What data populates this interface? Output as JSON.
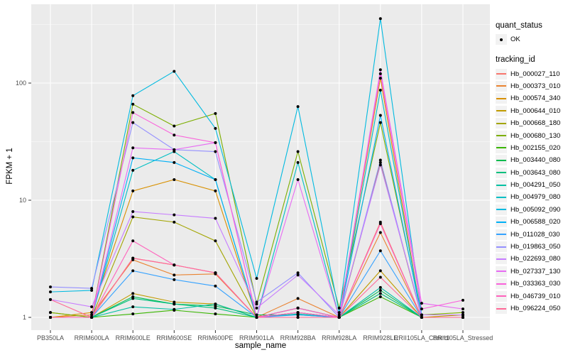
{
  "chart_data": {
    "type": "line",
    "title": "",
    "xlabel": "sample_name",
    "ylabel": "FPKM + 1",
    "y_scale": "log10",
    "ylim": [
      0.78,
      470
    ],
    "y_ticks": [
      1,
      10,
      100
    ],
    "y_minor_ticks": [
      3.162,
      31.62,
      316.2
    ],
    "grid": "major-white-on-gray-panel",
    "panel_color": "#EBEBEB",
    "gridline_color": "#FFFFFF",
    "axis_text_color": "#4D4D4D",
    "point_color": "#000000",
    "legend_position": "right",
    "categories": [
      "PB350LA",
      "RRIM600LA",
      "RRIM600LE",
      "RRIM600SE",
      "RRIM600PE",
      "RRIM901LA",
      "RRIM928BA",
      "RRIM928LA",
      "RRIM928LE",
      "RRII105LA_Control",
      "RRII105LA_Stressed"
    ],
    "quant_status": {
      "title": "quant_status",
      "items": [
        "OK"
      ]
    },
    "legend_title": "tracking_id",
    "series": [
      {
        "name": "Hb_000027_110",
        "color": "#F8766D",
        "values": [
          1.0,
          1.0,
          3.2,
          2.8,
          2.4,
          1.0,
          1.2,
          1.0,
          6.5,
          1.0,
          1.0
        ]
      },
      {
        "name": "Hb_000373_010",
        "color": "#EA8331",
        "values": [
          1.0,
          1.05,
          3.1,
          2.3,
          2.35,
          1.0,
          1.45,
          1.0,
          5.3,
          1.0,
          1.0
        ]
      },
      {
        "name": "Hb_000574_340",
        "color": "#D89000",
        "values": [
          1.0,
          1.1,
          12,
          15,
          12,
          1.0,
          1.2,
          1.0,
          110,
          1.0,
          1.0
        ]
      },
      {
        "name": "Hb_000644_010",
        "color": "#C09B00",
        "values": [
          1.0,
          1.0,
          1.6,
          1.35,
          1.3,
          1.0,
          1.1,
          1.0,
          2.5,
          1.0,
          1.05
        ]
      },
      {
        "name": "Hb_000668_180",
        "color": "#A3A500",
        "values": [
          1.1,
          1.0,
          7.2,
          6.5,
          4.5,
          1.0,
          1.1,
          1.0,
          21,
          1.0,
          1.0
        ]
      },
      {
        "name": "Hb_000680_130",
        "color": "#7CAE00",
        "values": [
          1.1,
          1.0,
          66,
          43,
          55,
          1.3,
          26,
          1.2,
          46,
          1.05,
          1.1
        ]
      },
      {
        "name": "Hb_002155_020",
        "color": "#39B600",
        "values": [
          1.0,
          1.0,
          1.07,
          1.15,
          1.07,
          1.0,
          1.0,
          1.0,
          1.5,
          1.0,
          1.0
        ]
      },
      {
        "name": "Hb_003440_080",
        "color": "#00BB4E",
        "values": [
          1.0,
          1.0,
          1.5,
          1.3,
          1.25,
          1.05,
          1.05,
          1.0,
          1.7,
          1.0,
          1.0
        ]
      },
      {
        "name": "Hb_003643_080",
        "color": "#00BF7D",
        "values": [
          1.0,
          1.0,
          1.45,
          1.3,
          1.2,
          1.0,
          1.0,
          1.0,
          1.6,
          1.0,
          1.0
        ]
      },
      {
        "name": "Hb_004291_050",
        "color": "#00C1A3",
        "values": [
          1.0,
          1.0,
          1.23,
          1.17,
          1.3,
          1.0,
          1.07,
          1.0,
          1.8,
          1.0,
          1.0
        ]
      },
      {
        "name": "Hb_004979_080",
        "color": "#00BFC4",
        "values": [
          1.0,
          1.0,
          18,
          26,
          15,
          1.0,
          21,
          1.0,
          87,
          1.0,
          1.0
        ]
      },
      {
        "name": "Hb_005092_090",
        "color": "#00BAE0",
        "values": [
          1.65,
          1.7,
          78,
          126,
          41,
          2.15,
          63,
          1.1,
          355,
          1.05,
          1.05
        ]
      },
      {
        "name": "Hb_006588_020",
        "color": "#00B0F6",
        "values": [
          1.0,
          1.0,
          23,
          21,
          15,
          1.0,
          1.2,
          1.0,
          53,
          1.0,
          1.0
        ]
      },
      {
        "name": "Hb_011028_030",
        "color": "#35A2FF",
        "values": [
          1.0,
          1.0,
          2.5,
          2.1,
          1.85,
          1.0,
          1.05,
          1.0,
          3.7,
          1.0,
          1.0
        ]
      },
      {
        "name": "Hb_019863_050",
        "color": "#9590FF",
        "values": [
          1.82,
          1.77,
          46,
          27,
          26,
          1.35,
          2.4,
          1.0,
          22,
          1.0,
          1.0
        ]
      },
      {
        "name": "Hb_022693_080",
        "color": "#C77CFF",
        "values": [
          1.42,
          1.23,
          8.0,
          7.5,
          7.0,
          1.2,
          2.3,
          1.05,
          20,
          1.05,
          1.05
        ]
      },
      {
        "name": "Hb_027337_130",
        "color": "#E76BF3",
        "values": [
          1.0,
          1.0,
          28,
          27,
          31,
          1.0,
          15,
          1.0,
          130,
          1.32,
          1.18
        ]
      },
      {
        "name": "Hb_033363_030",
        "color": "#FA62DB",
        "values": [
          1.0,
          1.0,
          56,
          36,
          31,
          1.0,
          1.1,
          1.0,
          120,
          1.18,
          1.4
        ]
      },
      {
        "name": "Hb_046739_010",
        "color": "#FF62BC",
        "values": [
          1.0,
          1.0,
          4.5,
          2.8,
          2.4,
          1.0,
          1.2,
          1.0,
          6.3,
          1.0,
          1.0
        ]
      },
      {
        "name": "Hb_096224_050",
        "color": "#FF6A98",
        "values": [
          1.42,
          1.0,
          3.2,
          2.8,
          2.4,
          1.0,
          1.0,
          1.0,
          2.2,
          1.0,
          1.0
        ]
      }
    ]
  }
}
